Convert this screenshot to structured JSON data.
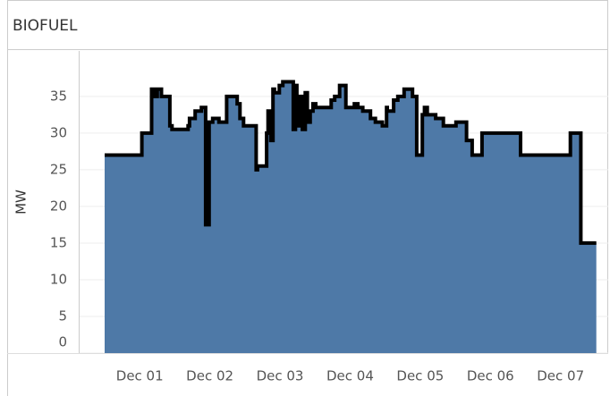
{
  "chart_data": {
    "type": "area",
    "title": "BIOFUEL",
    "y_label": "MW",
    "x": [
      -0.5,
      0.03,
      0.17,
      0.2,
      0.25,
      0.31,
      0.33,
      0.43,
      0.46,
      0.51,
      0.69,
      0.71,
      0.79,
      0.88,
      0.94,
      0.99,
      1.04,
      1.13,
      1.24,
      1.3,
      1.39,
      1.43,
      1.48,
      1.52,
      1.66,
      1.68,
      1.73,
      1.81,
      1.83,
      1.87,
      1.9,
      1.92,
      1.99,
      2.04,
      2.09,
      2.19,
      2.22,
      2.24,
      2.28,
      2.32,
      2.36,
      2.39,
      2.43,
      2.47,
      2.51,
      2.65,
      2.73,
      2.78,
      2.85,
      2.94,
      2.98,
      3.06,
      3.11,
      3.18,
      3.29,
      3.36,
      3.46,
      3.52,
      3.53,
      3.62,
      3.68,
      3.77,
      3.89,
      3.95,
      4.03,
      4.06,
      4.1,
      4.22,
      4.33,
      4.51,
      4.66,
      4.74,
      4.79,
      4.88,
      4.89,
      5.43,
      5.44,
      6.14,
      6.15,
      6.29,
      6.31,
      6.51
    ],
    "values": [
      27,
      30,
      36,
      35,
      36,
      35,
      35,
      31,
      30.5,
      30.5,
      31,
      32,
      33,
      33.5,
      17.5,
      31.5,
      32,
      31.5,
      35,
      35,
      34,
      32,
      31,
      31,
      25,
      25.5,
      25.5,
      30,
      33,
      29,
      36,
      35.5,
      36.5,
      37,
      37,
      30.5,
      36.5,
      31,
      35,
      30.5,
      35.5,
      31.5,
      33,
      34,
      33.5,
      33.5,
      34.5,
      35,
      36.5,
      33.5,
      33.5,
      34,
      33.5,
      33,
      32,
      31.5,
      31,
      33.5,
      33,
      34.5,
      35,
      36,
      35,
      27,
      32.5,
      33.5,
      32.5,
      32,
      31,
      31.5,
      29,
      27,
      27,
      30,
      30,
      27,
      27,
      30,
      30,
      15,
      15,
      15
    ],
    "fill_color": "#4e79a7",
    "line_color": "#000000",
    "xlim": [
      -0.87,
      6.68
    ],
    "xticks": [
      {
        "value": 0,
        "label": "Dec 01"
      },
      {
        "value": 1,
        "label": "Dec 02"
      },
      {
        "value": 2,
        "label": "Dec 03"
      },
      {
        "value": 3,
        "label": "Dec 04"
      },
      {
        "value": 4,
        "label": "Dec 05"
      },
      {
        "value": 5,
        "label": "Dec 06"
      },
      {
        "value": 6,
        "label": "Dec 07"
      }
    ],
    "ylim": [
      0,
      41.2
    ],
    "yticks": [
      0,
      5,
      10,
      15,
      20,
      25,
      30,
      35
    ],
    "grid": true
  }
}
